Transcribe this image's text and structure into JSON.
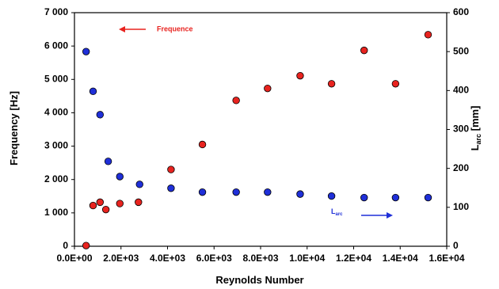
{
  "chart_data": {
    "type": "scatter",
    "xlabel": "Reynolds Number",
    "ylabel_left": "Frequency [Hz]",
    "ylabel_right": "L",
    "ylabel_right_sub": "arc",
    "ylabel_right_unit": " [mm]",
    "xlim": [
      0,
      16000
    ],
    "ylim_left": [
      0,
      7000
    ],
    "ylim_right": [
      0,
      600
    ],
    "x_ticks": [
      0,
      2000,
      4000,
      6000,
      8000,
      10000,
      12000,
      14000,
      16000
    ],
    "x_tick_labels": [
      "0.0E+00",
      "2.0E+03",
      "4.0E+03",
      "6.0E+03",
      "8.0E+03",
      "1.0E+04",
      "1.2E+04",
      "1.4E+04",
      "1.6E+04"
    ],
    "y_left_ticks": [
      0,
      1000,
      2000,
      3000,
      4000,
      5000,
      6000,
      7000
    ],
    "y_left_tick_labels": [
      "0",
      "1 000",
      "2 000",
      "3 000",
      "4 000",
      "5 000",
      "6 000",
      "7 000"
    ],
    "y_right_ticks": [
      0,
      100,
      200,
      300,
      400,
      500,
      600
    ],
    "y_right_tick_labels": [
      "0",
      "100",
      "200",
      "300",
      "400",
      "500",
      "600"
    ],
    "grid": false,
    "series": [
      {
        "name": "Frequence",
        "axis": "left",
        "color": "#e8231f",
        "points": [
          [
            500,
            20
          ],
          [
            800,
            1220
          ],
          [
            1100,
            1320
          ],
          [
            1350,
            1100
          ],
          [
            1950,
            1280
          ],
          [
            2750,
            1320
          ],
          [
            4150,
            2300
          ],
          [
            5500,
            3050
          ],
          [
            6950,
            4370
          ],
          [
            8300,
            4730
          ],
          [
            9700,
            5110
          ],
          [
            11050,
            4870
          ],
          [
            12450,
            5870
          ],
          [
            13800,
            4870
          ],
          [
            15200,
            6340
          ]
        ]
      },
      {
        "name": "L",
        "name_sub": "arc",
        "axis": "right",
        "color": "#1f2fd8",
        "points": [
          [
            500,
            500
          ],
          [
            800,
            398
          ],
          [
            1100,
            338
          ],
          [
            1450,
            218
          ],
          [
            1950,
            179
          ],
          [
            2800,
            159
          ],
          [
            4150,
            149
          ],
          [
            5500,
            139
          ],
          [
            6950,
            139
          ],
          [
            8300,
            139
          ],
          [
            9700,
            134
          ],
          [
            11050,
            129
          ],
          [
            12450,
            125
          ],
          [
            13800,
            125
          ],
          [
            15200,
            125
          ]
        ]
      }
    ]
  }
}
